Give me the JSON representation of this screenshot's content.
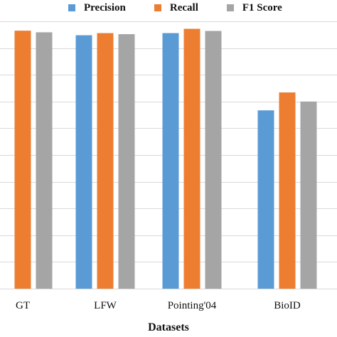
{
  "chart_data": {
    "type": "bar",
    "title": "",
    "xlabel": "Datasets",
    "ylabel": "",
    "categories": [
      "GT",
      "LFW",
      "Pointing'04",
      "BioID"
    ],
    "series": [
      {
        "name": "Precision",
        "color": "#5b9bd5",
        "values": [
          null,
          94.8,
          95.6,
          66.7
        ]
      },
      {
        "name": "Recall",
        "color": "#ed7d31",
        "values": [
          96.5,
          95.6,
          97.2,
          73.4
        ]
      },
      {
        "name": "F1 Score",
        "color": "#a5a5a5",
        "values": [
          95.9,
          95.2,
          96.4,
          70.0
        ]
      }
    ],
    "ylim": [
      0,
      100
    ],
    "grid": true,
    "legend_position": "top"
  }
}
